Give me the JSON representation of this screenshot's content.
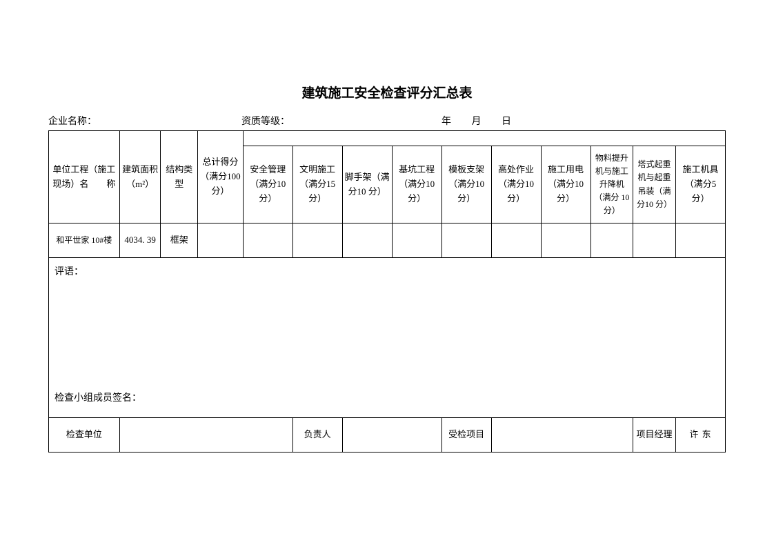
{
  "title": "建筑施工安全检查评分汇总表",
  "meta": {
    "company_label": "企业名称：",
    "grade_label": "资质等级：",
    "date_year": "年",
    "date_month": "月",
    "date_day": "日"
  },
  "headers": {
    "col1": "单位工程（施工现场）名　　称",
    "col2": "建筑面积（m²）",
    "col3": "结构类型",
    "col4": "总计得分（满分100 分）",
    "col5": "安全管理（满分10 分）",
    "col6": "文明施工（满分15 分）",
    "col7": "脚手架（满分10 分）",
    "col8": "基坑工程（满分10 分）",
    "col9": "模板支架（满分10 分）",
    "col10": "高处作业（满分10 分）",
    "col11": "施工用电（满分10 分）",
    "col12": "物料提升机与施工升降机（满分 10 分）",
    "col13": "塔式起重机与起重吊装（满分10 分）",
    "col14": "施工机具（满分5 分）"
  },
  "row1": {
    "project_name": "和平世家 10#楼",
    "area": "4034. 39",
    "structure": "框架",
    "total": "",
    "c5": "",
    "c6": "",
    "c7": "",
    "c8": "",
    "c9": "",
    "c10": "",
    "c11": "",
    "c12": "",
    "c13": "",
    "c14": ""
  },
  "comments": {
    "label": "评语：",
    "signature_label": "检查小组成员签名："
  },
  "footer": {
    "check_unit_label": "检查单位",
    "check_unit": "",
    "responsible_label": "负责人",
    "responsible": "",
    "inspected_label": "受检项目",
    "inspected": "",
    "pm_label": "项目经理",
    "pm": "许 东"
  },
  "styling": {
    "page_bg": "#ffffff",
    "border_color": "#000000",
    "title_fontsize": 19,
    "header_fontsize": 13,
    "body_fontsize": 13,
    "meta_fontsize": 14,
    "font_family": "SimSun"
  }
}
